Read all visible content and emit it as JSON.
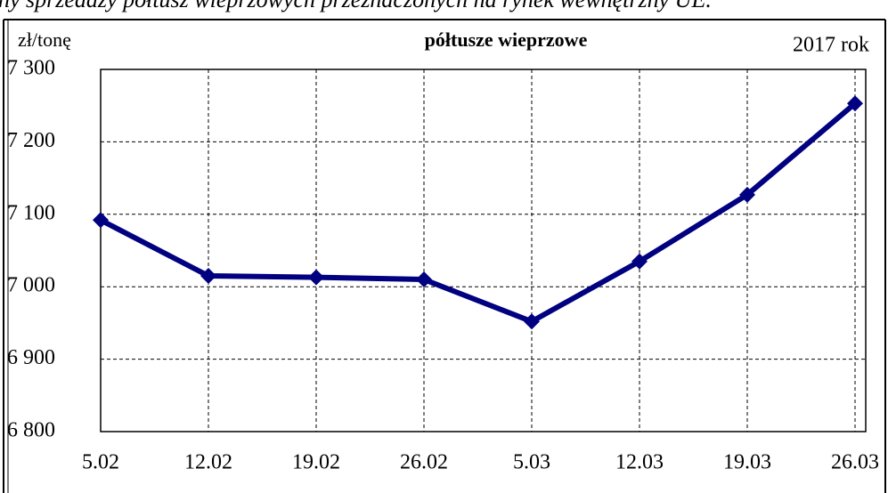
{
  "chart_data": {
    "type": "line",
    "caption": "ny sprzedaży półtusz wieprzowych przeznaczonych na rynek wewnętrzny UE.",
    "title": "półtusze wieprzowe",
    "subtitle": "2017 rok",
    "y_label": "zł/tonę",
    "categories": [
      "5.02",
      "12.02",
      "19.02",
      "26.02",
      "5.03",
      "12.03",
      "19.03",
      "26.03"
    ],
    "series": [
      {
        "name": "półtusze wieprzowe",
        "color": "#000080",
        "values": [
          7092,
          7015,
          7013,
          7010,
          6952,
          7035,
          7127,
          7253
        ]
      }
    ],
    "ylim": [
      6800,
      7300
    ],
    "yticks": [
      {
        "value": 6800,
        "label": "6 800"
      },
      {
        "value": 6900,
        "label": "6 900"
      },
      {
        "value": 7000,
        "label": "7 000"
      },
      {
        "value": 7100,
        "label": "7 100"
      },
      {
        "value": 7200,
        "label": "7 200"
      },
      {
        "value": 7300,
        "label": "7 300"
      }
    ],
    "grid": true
  }
}
